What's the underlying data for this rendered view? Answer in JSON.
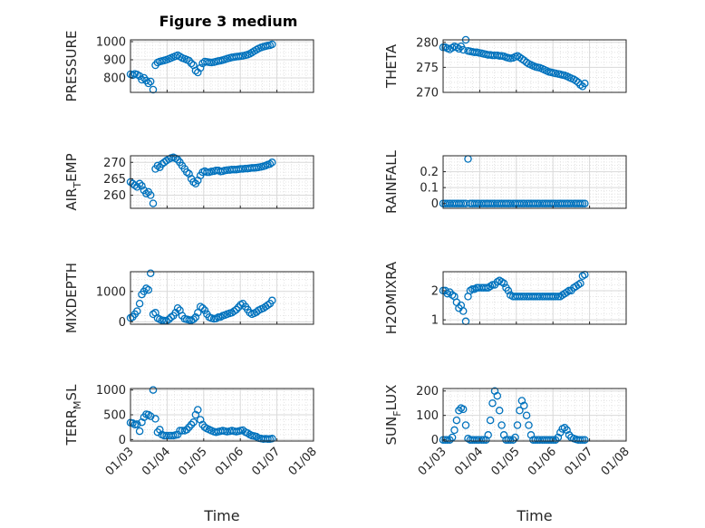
{
  "chart_data": {
    "type": "scatter",
    "title": "Figure 3 medium",
    "xlabel": "Time",
    "xlim": [
      "01/03",
      "01/08"
    ],
    "x_tick_labels": [
      "01/03",
      "01/04",
      "01/05",
      "01/06",
      "01/07",
      "01/08"
    ],
    "marker": "open-circle",
    "marker_color": "#0072BD",
    "grid": "major-and-minor",
    "subplots": [
      {
        "id": "pressure",
        "ylabel_main": "PRESSURE",
        "ylabel_sub": "",
        "ylim": [
          720,
          1010
        ],
        "ticks": [
          800,
          900,
          1000
        ],
        "tick_labels": [
          "800",
          "900",
          "1000"
        ],
        "x": [
          3.0,
          3.06,
          3.12,
          3.18,
          3.25,
          3.31,
          3.37,
          3.43,
          3.49,
          3.55,
          3.62,
          3.68,
          3.74,
          3.8,
          3.86,
          3.92,
          3.98,
          4.05,
          4.11,
          4.17,
          4.23,
          4.29,
          4.35,
          4.41,
          4.48,
          4.54,
          4.6,
          4.66,
          4.72,
          4.78,
          4.84,
          4.91,
          4.97,
          5.03,
          5.09,
          5.15,
          5.21,
          5.28,
          5.34,
          5.4,
          5.46,
          5.52,
          5.58,
          5.64,
          5.71,
          5.77,
          5.83,
          5.89,
          5.95,
          6.01,
          6.07,
          6.14,
          6.2,
          6.26,
          6.32,
          6.38,
          6.44,
          6.5,
          6.57,
          6.63,
          6.69,
          6.75,
          6.81,
          6.87
        ],
        "y": [
          820,
          815,
          822,
          818,
          810,
          790,
          800,
          785,
          770,
          780,
          735,
          870,
          885,
          890,
          893,
          896,
          900,
          905,
          910,
          915,
          920,
          925,
          918,
          910,
          905,
          900,
          895,
          880,
          870,
          840,
          830,
          855,
          880,
          890,
          888,
          886,
          885,
          887,
          890,
          893,
          895,
          898,
          902,
          906,
          910,
          913,
          915,
          917,
          918,
          920,
          922,
          925,
          928,
          933,
          940,
          948,
          955,
          962,
          968,
          972,
          975,
          978,
          980,
          985
        ]
      },
      {
        "id": "theta",
        "ylabel_main": "THETA",
        "ylabel_sub": "",
        "ylim": [
          270,
          280.5
        ],
        "ticks": [
          270,
          275,
          280
        ],
        "tick_labels": [
          "270",
          "275",
          "280"
        ],
        "x": [
          3.0,
          3.06,
          3.12,
          3.18,
          3.25,
          3.31,
          3.37,
          3.43,
          3.49,
          3.55,
          3.62,
          3.68,
          3.74,
          3.8,
          3.86,
          3.92,
          3.98,
          4.05,
          4.11,
          4.17,
          4.23,
          4.29,
          4.35,
          4.41,
          4.48,
          4.54,
          4.6,
          4.66,
          4.72,
          4.78,
          4.84,
          4.91,
          4.97,
          5.03,
          5.09,
          5.15,
          5.21,
          5.28,
          5.34,
          5.4,
          5.46,
          5.52,
          5.58,
          5.64,
          5.71,
          5.77,
          5.83,
          5.89,
          5.95,
          6.01,
          6.07,
          6.14,
          6.2,
          6.26,
          6.32,
          6.38,
          6.44,
          6.5,
          6.57,
          6.63,
          6.69,
          6.75,
          6.81,
          6.87
        ],
        "y": [
          279.0,
          279.0,
          278.8,
          278.6,
          278.9,
          279.2,
          279.0,
          278.7,
          279.2,
          278.5,
          280.5,
          278.3,
          278.2,
          278.1,
          278.0,
          278.0,
          277.9,
          277.8,
          277.7,
          277.6,
          277.5,
          277.5,
          277.4,
          277.4,
          277.4,
          277.3,
          277.3,
          277.2,
          277.0,
          276.9,
          276.8,
          276.9,
          277.1,
          277.3,
          277.0,
          276.7,
          276.4,
          276.0,
          275.7,
          275.5,
          275.3,
          275.1,
          275.0,
          274.9,
          274.7,
          274.5,
          274.3,
          274.1,
          274.0,
          273.9,
          273.8,
          273.7,
          273.6,
          273.5,
          273.4,
          273.2,
          273.0,
          272.8,
          272.6,
          272.3,
          272.0,
          271.5,
          271.2,
          271.8
        ]
      },
      {
        "id": "air-temp",
        "ylabel_main": "AIR",
        "ylabel_sub": "T",
        "ylabel_tail": "EMP",
        "ylim": [
          256,
          272
        ],
        "ticks": [
          260,
          265,
          270
        ],
        "tick_labels": [
          "260",
          "265",
          "270"
        ],
        "x": [
          3.0,
          3.06,
          3.12,
          3.18,
          3.25,
          3.31,
          3.37,
          3.43,
          3.49,
          3.55,
          3.62,
          3.68,
          3.74,
          3.8,
          3.86,
          3.92,
          3.98,
          4.05,
          4.11,
          4.17,
          4.23,
          4.29,
          4.35,
          4.41,
          4.48,
          4.54,
          4.6,
          4.66,
          4.72,
          4.78,
          4.84,
          4.91,
          4.97,
          5.03,
          5.09,
          5.15,
          5.21,
          5.28,
          5.34,
          5.4,
          5.46,
          5.52,
          5.58,
          5.64,
          5.71,
          5.77,
          5.83,
          5.89,
          5.95,
          6.01,
          6.07,
          6.14,
          6.2,
          6.26,
          6.32,
          6.38,
          6.44,
          6.5,
          6.57,
          6.63,
          6.69,
          6.75,
          6.81,
          6.87
        ],
        "y": [
          264.0,
          263.5,
          263.0,
          262.5,
          263.5,
          262.8,
          261.5,
          260.5,
          261.0,
          260.0,
          257.5,
          268.0,
          269.0,
          268.5,
          269.5,
          270.0,
          270.5,
          271.0,
          271.3,
          271.5,
          271.2,
          270.8,
          270.0,
          269.0,
          268.0,
          267.0,
          266.5,
          265.0,
          264.0,
          263.5,
          264.5,
          266.0,
          267.0,
          267.3,
          267.0,
          267.0,
          267.2,
          267.3,
          267.5,
          267.5,
          267.2,
          267.3,
          267.5,
          267.6,
          267.7,
          267.8,
          267.8,
          267.8,
          267.9,
          268.0,
          268.0,
          268.1,
          268.1,
          268.2,
          268.3,
          268.3,
          268.4,
          268.5,
          268.6,
          268.8,
          269.0,
          269.3,
          269.5,
          270.0
        ]
      },
      {
        "id": "rainfall",
        "ylabel_main": "RAINFALL",
        "ylabel_sub": "",
        "ylim": [
          -0.03,
          0.3
        ],
        "ticks": [
          0,
          0.1,
          0.2
        ],
        "tick_labels": [
          "0",
          "0.1",
          "0.2"
        ],
        "x": [
          3.0,
          3.06,
          3.12,
          3.18,
          3.25,
          3.31,
          3.37,
          3.43,
          3.49,
          3.55,
          3.62,
          3.68,
          3.74,
          3.8,
          3.86,
          3.92,
          3.98,
          4.05,
          4.11,
          4.17,
          4.23,
          4.29,
          4.35,
          4.41,
          4.48,
          4.54,
          4.6,
          4.66,
          4.72,
          4.78,
          4.84,
          4.91,
          4.97,
          5.03,
          5.09,
          5.15,
          5.21,
          5.28,
          5.34,
          5.4,
          5.46,
          5.52,
          5.58,
          5.64,
          5.71,
          5.77,
          5.83,
          5.89,
          5.95,
          6.01,
          6.07,
          6.14,
          6.2,
          6.26,
          6.32,
          6.38,
          6.44,
          6.5,
          6.57,
          6.63,
          6.69,
          6.75,
          6.81,
          6.87
        ],
        "y": [
          0,
          0,
          0,
          0,
          0,
          0,
          0,
          0,
          0,
          0,
          0,
          0.28,
          0,
          0,
          0,
          0,
          0,
          0,
          0,
          0,
          0,
          0,
          0,
          0,
          0,
          0,
          0,
          0,
          0,
          0,
          0,
          0,
          0,
          0,
          0,
          0,
          0,
          0,
          0,
          0,
          0,
          0,
          0,
          0,
          0,
          0,
          0,
          0,
          0,
          0,
          0,
          0,
          0,
          0,
          0,
          0,
          0,
          0,
          0,
          0,
          0,
          0,
          0,
          0
        ]
      },
      {
        "id": "mixdepth",
        "ylabel_main": "MIXDEPTH",
        "ylabel_sub": "",
        "ylim": [
          -80,
          1650
        ],
        "ticks": [
          0,
          1000
        ],
        "tick_labels": [
          "0",
          "1000"
        ],
        "x": [
          3.0,
          3.06,
          3.12,
          3.18,
          3.25,
          3.31,
          3.37,
          3.43,
          3.49,
          3.55,
          3.62,
          3.68,
          3.74,
          3.8,
          3.86,
          3.92,
          3.98,
          4.05,
          4.11,
          4.17,
          4.23,
          4.29,
          4.35,
          4.41,
          4.48,
          4.54,
          4.6,
          4.66,
          4.72,
          4.78,
          4.84,
          4.91,
          4.97,
          5.03,
          5.09,
          5.15,
          5.21,
          5.28,
          5.34,
          5.4,
          5.46,
          5.52,
          5.58,
          5.64,
          5.71,
          5.77,
          5.83,
          5.89,
          5.95,
          6.01,
          6.07,
          6.14,
          6.2,
          6.26,
          6.32,
          6.38,
          6.44,
          6.5,
          6.57,
          6.63,
          6.69,
          6.75,
          6.81,
          6.87
        ],
        "y": [
          130,
          160,
          250,
          350,
          600,
          900,
          1000,
          1100,
          1050,
          1600,
          250,
          300,
          120,
          80,
          50,
          40,
          30,
          80,
          150,
          200,
          300,
          450,
          380,
          200,
          100,
          80,
          60,
          50,
          80,
          150,
          300,
          500,
          450,
          380,
          250,
          150,
          120,
          100,
          110,
          150,
          160,
          200,
          220,
          250,
          280,
          300,
          350,
          400,
          480,
          560,
          600,
          500,
          400,
          300,
          250,
          280,
          320,
          380,
          420,
          450,
          500,
          550,
          600,
          700
        ]
      },
      {
        "id": "h2omixra",
        "ylabel_main": "H2OMIXRA",
        "ylabel_sub": "",
        "ylim": [
          0.85,
          2.65
        ],
        "ticks": [
          1,
          2
        ],
        "tick_labels": [
          "1",
          "2"
        ],
        "x": [
          3.0,
          3.06,
          3.12,
          3.18,
          3.25,
          3.31,
          3.37,
          3.43,
          3.49,
          3.55,
          3.62,
          3.68,
          3.74,
          3.8,
          3.86,
          3.92,
          3.98,
          4.05,
          4.11,
          4.17,
          4.23,
          4.29,
          4.35,
          4.41,
          4.48,
          4.54,
          4.6,
          4.66,
          4.72,
          4.78,
          4.84,
          4.91,
          4.97,
          5.03,
          5.09,
          5.15,
          5.21,
          5.28,
          5.34,
          5.4,
          5.46,
          5.52,
          5.58,
          5.64,
          5.71,
          5.77,
          5.83,
          5.89,
          5.95,
          6.01,
          6.07,
          6.14,
          6.2,
          6.26,
          6.32,
          6.38,
          6.44,
          6.5,
          6.57,
          6.63,
          6.69,
          6.75,
          6.81,
          6.87
        ],
        "y": [
          2.0,
          2.0,
          1.9,
          1.95,
          1.85,
          1.8,
          1.6,
          1.4,
          1.5,
          1.3,
          0.95,
          1.8,
          2.0,
          2.05,
          2.05,
          2.1,
          2.1,
          2.1,
          2.1,
          2.1,
          2.1,
          2.15,
          2.2,
          2.2,
          2.3,
          2.35,
          2.3,
          2.25,
          2.1,
          2.0,
          1.85,
          1.8,
          1.8,
          1.8,
          1.8,
          1.8,
          1.8,
          1.8,
          1.8,
          1.8,
          1.8,
          1.8,
          1.8,
          1.8,
          1.8,
          1.8,
          1.8,
          1.8,
          1.8,
          1.8,
          1.8,
          1.8,
          1.8,
          1.85,
          1.9,
          1.95,
          2.0,
          2.0,
          2.1,
          2.15,
          2.2,
          2.25,
          2.5,
          2.55
        ]
      },
      {
        "id": "terr-msl",
        "ylabel_main": "TERR",
        "ylabel_sub": "M",
        "ylabel_tail": "SL",
        "ylim": [
          -30,
          1030
        ],
        "ticks": [
          0,
          500,
          1000
        ],
        "tick_labels": [
          "0",
          "500",
          "1000"
        ],
        "x": [
          3.0,
          3.06,
          3.12,
          3.18,
          3.25,
          3.31,
          3.37,
          3.43,
          3.49,
          3.55,
          3.62,
          3.68,
          3.74,
          3.8,
          3.86,
          3.92,
          3.98,
          4.05,
          4.11,
          4.17,
          4.23,
          4.29,
          4.35,
          4.41,
          4.48,
          4.54,
          4.6,
          4.66,
          4.72,
          4.78,
          4.84,
          4.91,
          4.97,
          5.03,
          5.09,
          5.15,
          5.21,
          5.28,
          5.34,
          5.4,
          5.46,
          5.52,
          5.58,
          5.64,
          5.71,
          5.77,
          5.83,
          5.89,
          5.95,
          6.01,
          6.07,
          6.14,
          6.2,
          6.26,
          6.32,
          6.38,
          6.44,
          6.5,
          6.57,
          6.63,
          6.69,
          6.75,
          6.81,
          6.87
        ],
        "y": [
          340,
          330,
          300,
          310,
          170,
          350,
          450,
          510,
          500,
          470,
          1000,
          420,
          150,
          200,
          100,
          80,
          80,
          80,
          80,
          80,
          90,
          100,
          180,
          180,
          180,
          200,
          250,
          300,
          350,
          500,
          600,
          400,
          300,
          250,
          220,
          200,
          180,
          160,
          150,
          160,
          170,
          180,
          170,
          160,
          170,
          180,
          170,
          160,
          170,
          180,
          190,
          150,
          130,
          100,
          80,
          70,
          60,
          30,
          20,
          10,
          15,
          10,
          10,
          20
        ]
      },
      {
        "id": "sun-flux",
        "ylabel_main": "SUN",
        "ylabel_sub": "F",
        "ylabel_tail": "LUX",
        "ylim": [
          -5,
          210
        ],
        "ticks": [
          0,
          100,
          200
        ],
        "tick_labels": [
          "0",
          "100",
          "200"
        ],
        "x": [
          3.0,
          3.06,
          3.12,
          3.18,
          3.25,
          3.31,
          3.37,
          3.43,
          3.49,
          3.55,
          3.62,
          3.68,
          3.74,
          3.8,
          3.86,
          3.92,
          3.98,
          4.05,
          4.11,
          4.17,
          4.23,
          4.29,
          4.35,
          4.41,
          4.48,
          4.54,
          4.6,
          4.66,
          4.72,
          4.78,
          4.84,
          4.91,
          4.97,
          5.03,
          5.09,
          5.15,
          5.21,
          5.28,
          5.34,
          5.4,
          5.46,
          5.52,
          5.58,
          5.64,
          5.71,
          5.77,
          5.83,
          5.89,
          5.95,
          6.01,
          6.07,
          6.14,
          6.2,
          6.26,
          6.32,
          6.38,
          6.44,
          6.5,
          6.57,
          6.63,
          6.69,
          6.75,
          6.81,
          6.87
        ],
        "y": [
          0,
          0,
          0,
          0,
          10,
          40,
          80,
          120,
          130,
          125,
          60,
          5,
          0,
          0,
          0,
          0,
          0,
          0,
          0,
          0,
          20,
          80,
          150,
          200,
          180,
          120,
          60,
          20,
          0,
          0,
          0,
          0,
          10,
          60,
          120,
          160,
          140,
          100,
          60,
          20,
          0,
          0,
          0,
          0,
          0,
          0,
          0,
          0,
          0,
          0,
          0,
          10,
          30,
          45,
          50,
          40,
          20,
          10,
          5,
          2,
          0,
          0,
          0,
          0
        ]
      }
    ]
  }
}
